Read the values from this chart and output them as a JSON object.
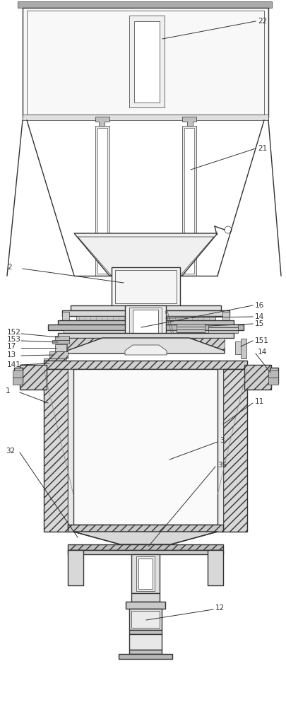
{
  "bg_color": "#ffffff",
  "line_color": "#333333",
  "figsize": [
    4.05,
    10.0
  ],
  "dpi": 100,
  "font_size": 7.5,
  "lw_main": 1.0,
  "lw_thin": 0.5,
  "lw_thick": 1.4
}
